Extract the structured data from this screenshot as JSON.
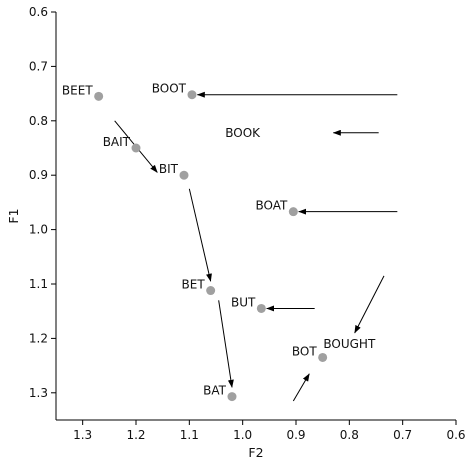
{
  "chart_data": {
    "type": "scatter",
    "title": "",
    "xlabel": "F2",
    "ylabel": "F1",
    "x_inverted": true,
    "y_inverted": true,
    "xlim": [
      1.35,
      0.6
    ],
    "ylim": [
      1.35,
      0.6
    ],
    "grid": false,
    "x_ticks": [
      "1.3",
      "1.2",
      "1.1",
      "1.0",
      "0.9",
      "0.8",
      "0.7",
      "0.6"
    ],
    "x_tick_values": [
      1.3,
      1.2,
      1.1,
      1.0,
      0.9,
      0.8,
      0.7,
      0.6
    ],
    "y_ticks": [
      "0.6",
      "0.7",
      "0.8",
      "0.9",
      "1.0",
      "1.1",
      "1.2",
      "1.3"
    ],
    "y_tick_values": [
      0.6,
      0.7,
      0.8,
      0.9,
      1.0,
      1.1,
      1.2,
      1.3
    ],
    "marker_color": "#a0a0a0",
    "arrow_color": "#000000",
    "points": [
      {
        "label": "BEET",
        "x": 1.27,
        "y": 0.755
      },
      {
        "label": "BOOT",
        "x": 1.095,
        "y": 0.752
      },
      {
        "label": "BAIT",
        "x": 1.2,
        "y": 0.85
      },
      {
        "label": "BIT",
        "x": 1.11,
        "y": 0.9
      },
      {
        "label": "BOAT",
        "x": 0.905,
        "y": 0.967
      },
      {
        "label": "BET",
        "x": 1.06,
        "y": 1.112
      },
      {
        "label": "BUT",
        "x": 0.965,
        "y": 1.145
      },
      {
        "label": "BOT",
        "x": 0.85,
        "y": 1.235
      },
      {
        "label": "BAT",
        "x": 1.02,
        "y": 1.307
      }
    ],
    "text_labels": [
      {
        "text": "BOOK",
        "x": 1.0,
        "y": 0.822
      },
      {
        "text": "BOUGHT",
        "x": 0.8,
        "y": 1.21
      }
    ],
    "arrows": [
      {
        "from": [
          0.71,
          0.752
        ],
        "to": [
          1.085,
          0.752
        ]
      },
      {
        "from": [
          0.745,
          0.822
        ],
        "to": [
          0.83,
          0.822
        ]
      },
      {
        "from": [
          0.71,
          0.967
        ],
        "to": [
          0.895,
          0.967
        ]
      },
      {
        "from": [
          0.865,
          1.145
        ],
        "to": [
          0.955,
          1.145
        ]
      },
      {
        "from": [
          1.24,
          0.8
        ],
        "to": [
          1.16,
          0.895
        ]
      },
      {
        "from": [
          1.1,
          0.925
        ],
        "to": [
          1.06,
          1.095
        ]
      },
      {
        "from": [
          1.045,
          1.13
        ],
        "to": [
          1.02,
          1.29
        ]
      },
      {
        "from": [
          0.735,
          1.085
        ],
        "to": [
          0.79,
          1.19
        ]
      },
      {
        "from": [
          0.905,
          1.315
        ],
        "to": [
          0.875,
          1.265
        ]
      }
    ]
  }
}
